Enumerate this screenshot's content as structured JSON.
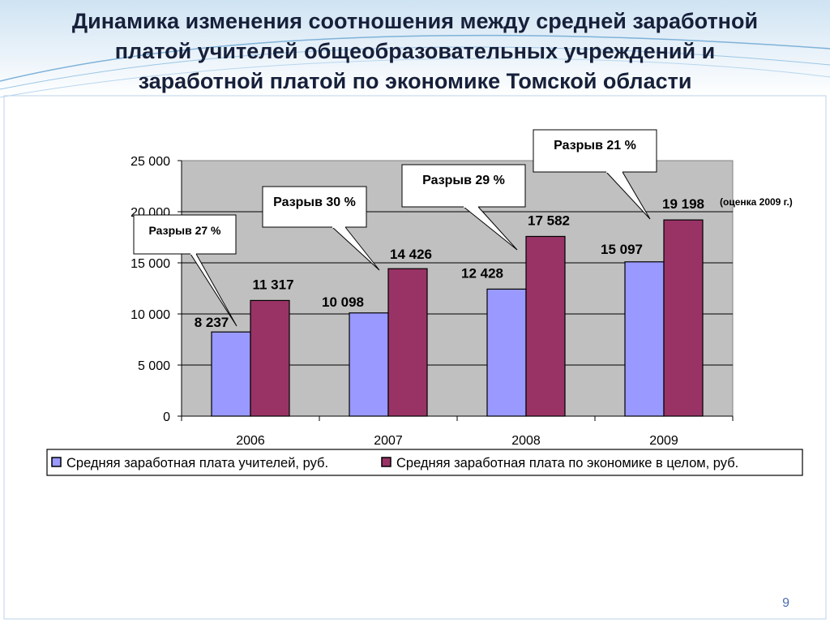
{
  "slide": {
    "title_lines": [
      "Динамика изменения соотношения между средней заработной",
      "платой учителей общеобразовательных учреждений и",
      "заработной платой по экономике Томской области"
    ],
    "page_number": "9"
  },
  "colors": {
    "teachers": "#9999ff",
    "economy": "#993366",
    "plot_bg": "#c0c0c0",
    "title": "#17203a",
    "accent_lines": "#7fb2d8"
  },
  "chart_data": {
    "type": "bar",
    "title": "",
    "xlabel": "",
    "ylabel": "",
    "ylim": [
      0,
      25000
    ],
    "y_ticks": [
      0,
      5000,
      10000,
      15000,
      20000,
      25000
    ],
    "y_tick_labels": [
      "0",
      "5 000",
      "10 000",
      "15 000",
      "20 000",
      "25 000"
    ],
    "grid": true,
    "legend_position": "bottom",
    "categories": [
      "2006",
      "2007",
      "2008",
      "2009"
    ],
    "series": [
      {
        "name": "Средняя заработная плата учителей, руб.",
        "values": [
          8237,
          10098,
          12428,
          15097
        ],
        "labels": [
          "8 237",
          "10 098",
          "12 428",
          "15 097"
        ],
        "color": "#9999ff"
      },
      {
        "name": "Средняя заработная плата по экономике в целом, руб.",
        "values": [
          11317,
          14426,
          17582,
          19198
        ],
        "labels": [
          "11 317",
          "14 426",
          "17 582",
          "19 198"
        ],
        "color": "#993366"
      }
    ],
    "annotations": [
      {
        "category": "2006",
        "text": "Разрыв 27 %"
      },
      {
        "category": "2007",
        "text": "Разрыв 30 %"
      },
      {
        "category": "2008",
        "text": "Разрыв 29 %"
      },
      {
        "category": "2009",
        "text": "Разрыв 21 %"
      }
    ],
    "note": {
      "category": "2009",
      "text": "(оценка 2009 г.)"
    }
  }
}
